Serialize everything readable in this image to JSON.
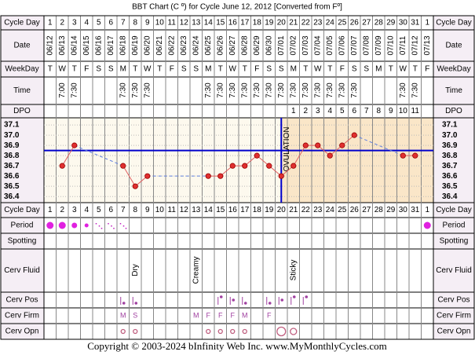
{
  "chart_data": {
    "type": "line",
    "title": "BBT Chart (C º) for Cycle June 12, 2012  [Converted from Fº]",
    "row_labels": [
      "Cycle Day",
      "Date",
      "WeekDay",
      "Time",
      "DPO",
      "Cycle Day",
      "Period",
      "Spotting",
      "Cerv Fluid",
      "Cerv Pos",
      "Cerv Firm",
      "Cerv Opn"
    ],
    "categories": [
      1,
      2,
      3,
      4,
      5,
      6,
      7,
      8,
      9,
      10,
      11,
      12,
      13,
      14,
      15,
      16,
      17,
      18,
      19,
      20,
      21,
      22,
      23,
      24,
      25,
      26,
      27,
      28,
      29,
      30,
      31,
      1
    ],
    "dates": [
      "06/12",
      "06/13",
      "06/14",
      "06/15",
      "06/16",
      "06/17",
      "06/18",
      "06/19",
      "06/20",
      "06/21",
      "06/22",
      "06/23",
      "06/24",
      "06/25",
      "06/26",
      "06/27",
      "06/28",
      "06/29",
      "06/30",
      "07/01",
      "07/02",
      "07/03",
      "07/04",
      "07/05",
      "07/06",
      "07/07",
      "07/08",
      "07/09",
      "07/10",
      "07/11",
      "07/12",
      "07/13"
    ],
    "weekdays": [
      "T",
      "W",
      "T",
      "F",
      "S",
      "S",
      "M",
      "T",
      "W",
      "T",
      "F",
      "S",
      "S",
      "M",
      "T",
      "W",
      "T",
      "F",
      "S",
      "S",
      "M",
      "T",
      "W",
      "T",
      "F",
      "S",
      "S",
      "M",
      "T",
      "W",
      "T",
      "F"
    ],
    "times": [
      null,
      "7:00",
      "7:30",
      null,
      null,
      null,
      "7:30",
      "7:30",
      "7:30",
      null,
      null,
      null,
      null,
      "7:30",
      "7:30",
      "7:30",
      "7:30",
      "7:30",
      "7:30",
      "7:30",
      "7:30",
      "7:30",
      "7:30",
      "7:30",
      "7:30",
      "7:30",
      null,
      null,
      null,
      "7:30",
      "7:30",
      null
    ],
    "dpo": [
      null,
      null,
      null,
      null,
      null,
      null,
      null,
      null,
      null,
      null,
      null,
      null,
      null,
      null,
      null,
      null,
      null,
      null,
      null,
      null,
      1,
      2,
      3,
      4,
      5,
      6,
      7,
      8,
      9,
      10,
      11,
      null
    ],
    "values": [
      null,
      36.7,
      36.9,
      null,
      null,
      null,
      36.7,
      36.5,
      36.6,
      null,
      null,
      null,
      null,
      36.6,
      36.6,
      36.7,
      36.7,
      36.8,
      36.7,
      36.6,
      36.7,
      36.9,
      36.9,
      36.8,
      36.9,
      37.0,
      null,
      null,
      null,
      36.8,
      36.8,
      null
    ],
    "color": "#e03030",
    "ylim": [
      36.34,
      37.17
    ],
    "yticks": [
      37.1,
      {
        "value": 37,
        "label": "37.0"
      },
      36.9,
      36.8,
      36.7,
      36.6,
      36.5,
      36.4
    ],
    "grid": true,
    "coverline": 36.85,
    "coverline_color": "#0000cc",
    "ovulation_day": 20,
    "ovulation_label": "OVULATION",
    "period": [
      4,
      4,
      3,
      2,
      1,
      1,
      1,
      null,
      null,
      null,
      null,
      null,
      null,
      null,
      null,
      null,
      null,
      null,
      null,
      null,
      null,
      null,
      null,
      null,
      null,
      null,
      null,
      null,
      null,
      null,
      null,
      4
    ],
    "cerv_fluid": [
      null,
      null,
      null,
      null,
      null,
      null,
      null,
      "Dry",
      null,
      null,
      null,
      null,
      "Creamy",
      null,
      null,
      null,
      null,
      null,
      null,
      null,
      "Sticky",
      null,
      null,
      null,
      null,
      null,
      null,
      null,
      null,
      null,
      null,
      null
    ],
    "cerv_pos": [
      null,
      null,
      null,
      null,
      null,
      null,
      1,
      1,
      null,
      null,
      null,
      null,
      null,
      null,
      3,
      2,
      1,
      null,
      1,
      2,
      3,
      3,
      null,
      null,
      null,
      null,
      null,
      null,
      null,
      null,
      null,
      null
    ],
    "cerv_firm": [
      null,
      null,
      null,
      null,
      null,
      null,
      "M",
      "S",
      null,
      null,
      null,
      null,
      "M",
      "F",
      "F",
      "F",
      "M",
      null,
      "F",
      null,
      null,
      null,
      null,
      null,
      null,
      null,
      null,
      null,
      null,
      null,
      null,
      null
    ],
    "cerv_opn": [
      null,
      null,
      null,
      null,
      null,
      null,
      1,
      1,
      null,
      null,
      null,
      null,
      null,
      1,
      1,
      1,
      1,
      null,
      null,
      3,
      2,
      null,
      null,
      null,
      null,
      null,
      null,
      null,
      null,
      null,
      null,
      null
    ],
    "footer": "Copyright © 2003-2024 bInfinity Web Inc.     www.MyMonthlyCycles.com"
  }
}
